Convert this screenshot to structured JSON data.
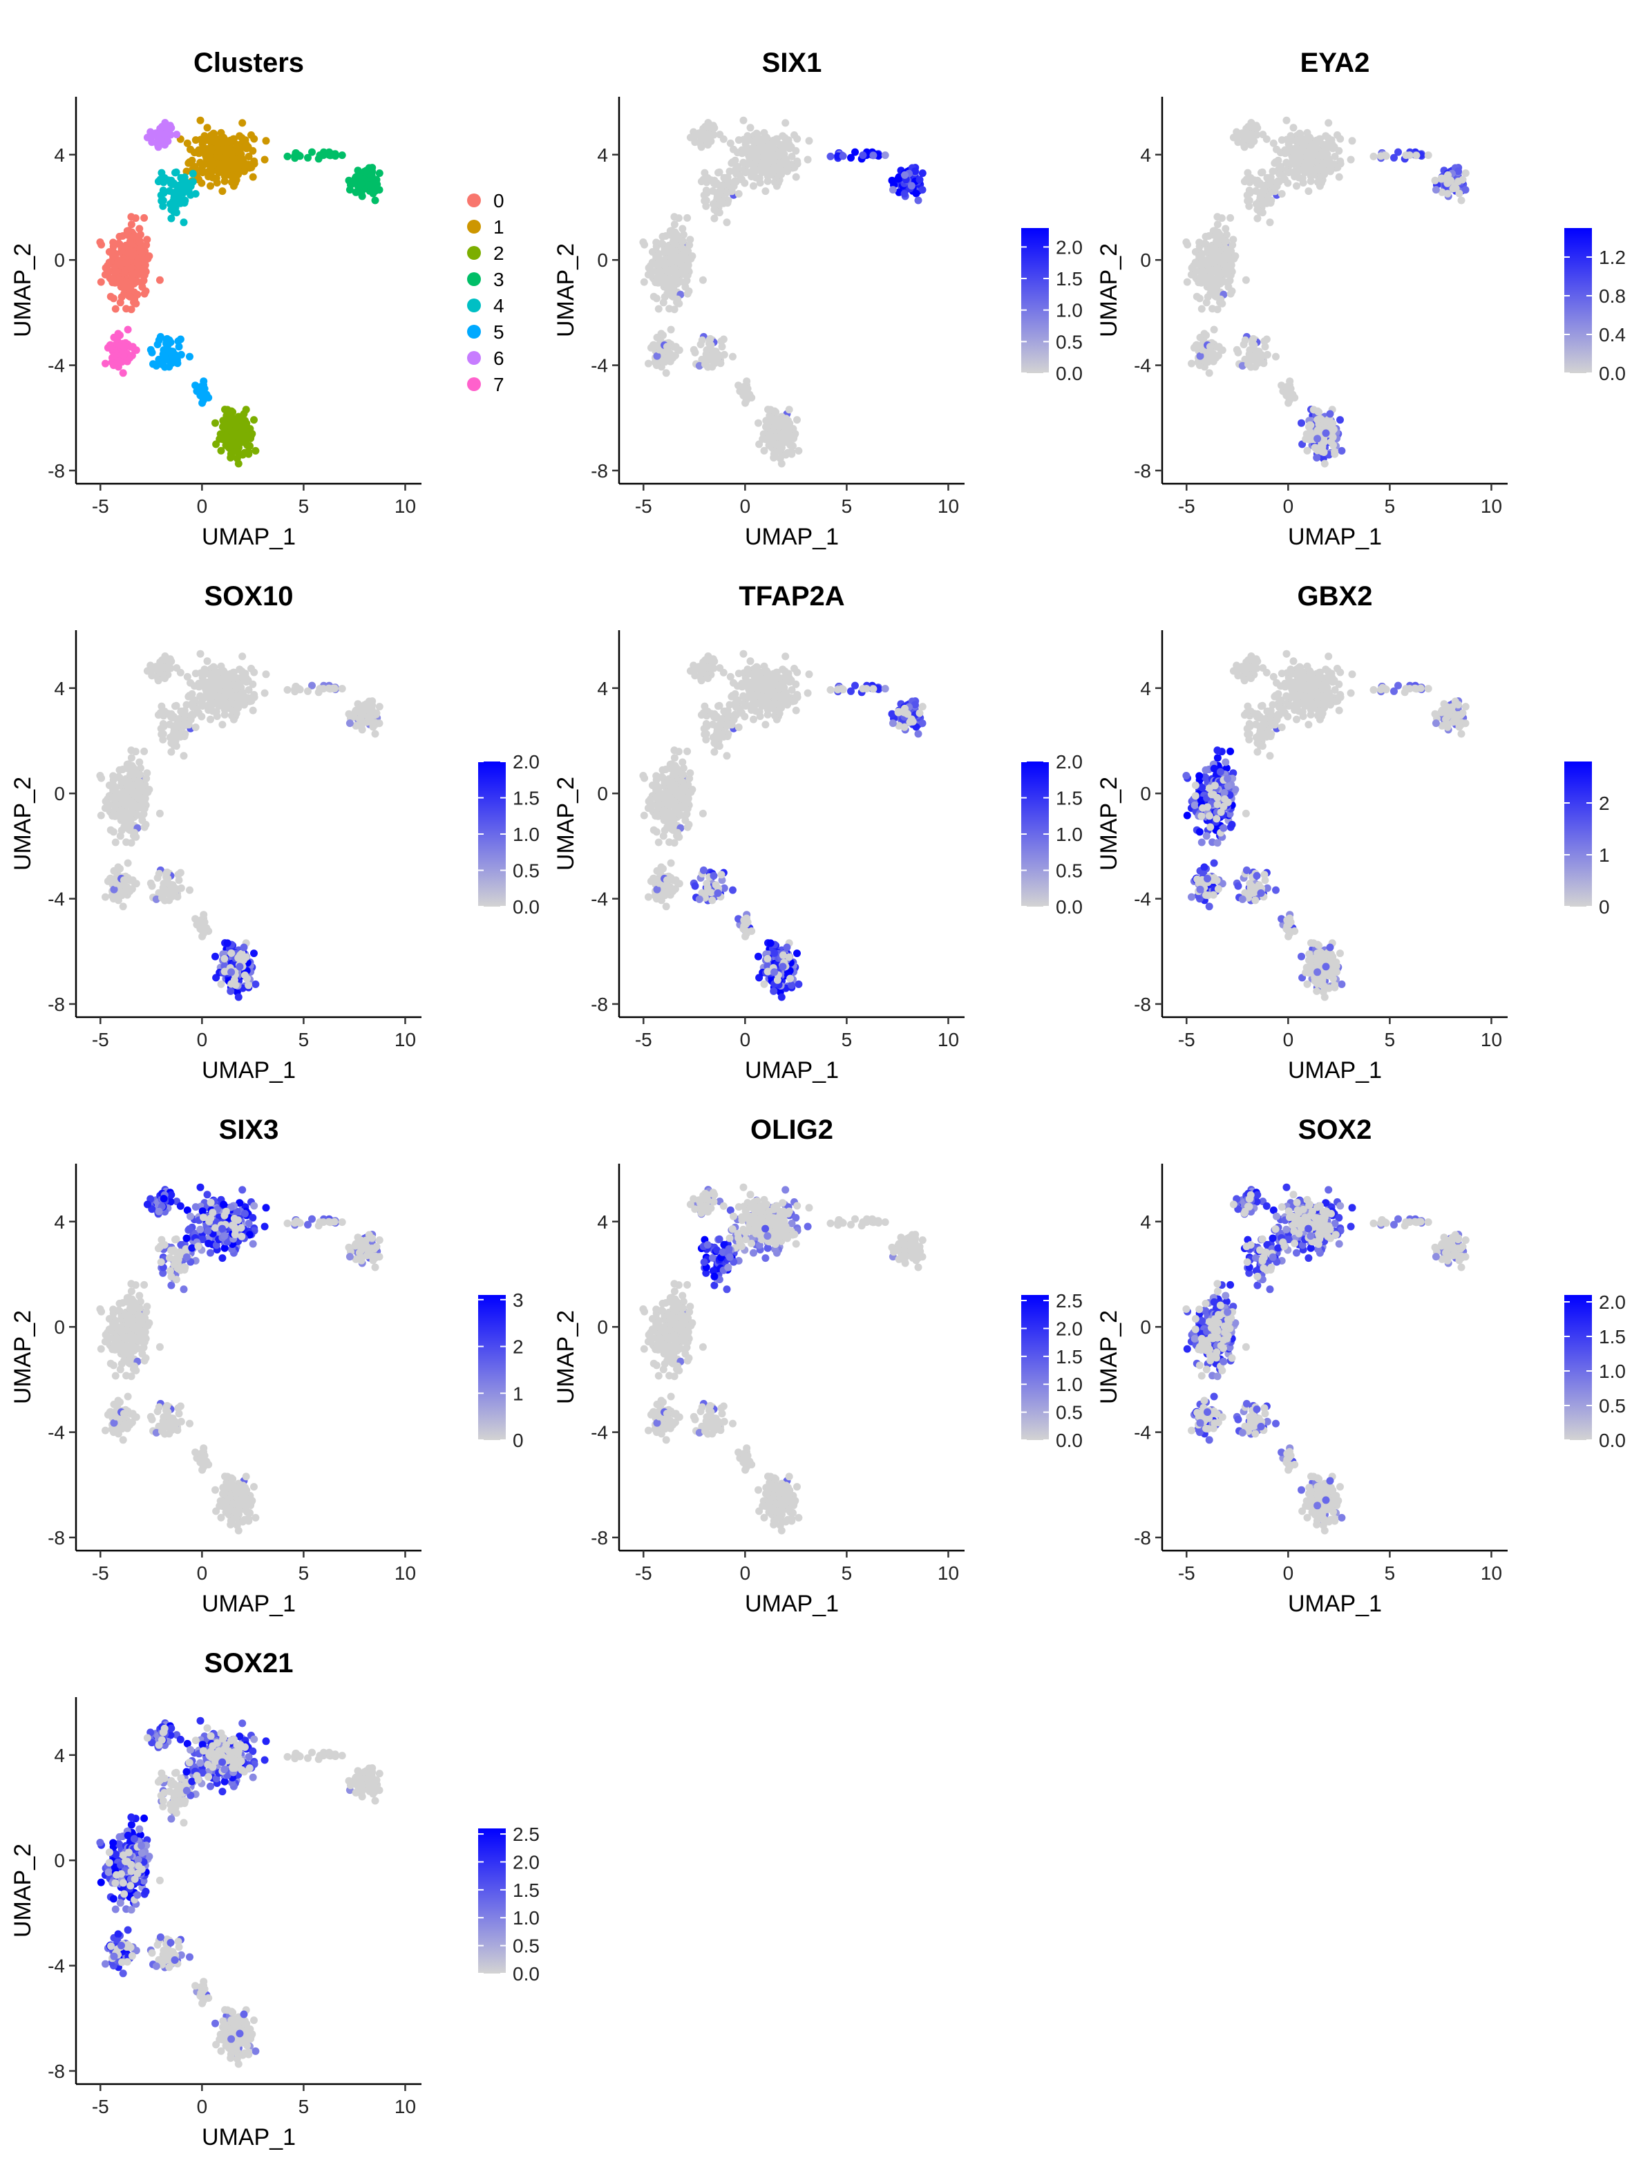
{
  "colors": {
    "low": "#d3d3d3",
    "high": "#0000ff",
    "clusters": [
      "#f8766d",
      "#cd9600",
      "#7cae00",
      "#00be67",
      "#00bfc4",
      "#00a9ff",
      "#c77cff",
      "#ff61cc"
    ]
  },
  "chart_data": [
    {
      "type": "scatter",
      "title": "Clusters",
      "xlabel": "UMAP_1",
      "ylabel": "UMAP_2",
      "xlim": [
        -6.2,
        10.8
      ],
      "ylim": [
        -8.5,
        6.2
      ],
      "xticks": [
        "-5",
        "0",
        "5",
        "10"
      ],
      "yticks": [
        "-8",
        "-4",
        "0",
        "4"
      ],
      "legend": {
        "placement": "right",
        "entries": [
          "0",
          "1",
          "2",
          "3",
          "4",
          "5",
          "6",
          "7"
        ]
      }
    },
    {
      "type": "scatter",
      "title": "SIX1",
      "xlabel": "UMAP_1",
      "ylabel": "UMAP_2",
      "xlim": [
        -6.2,
        10.8
      ],
      "ylim": [
        -8.5,
        6.2
      ],
      "xticks": [
        "-5",
        "0",
        "5",
        "10"
      ],
      "yticks": [
        "-8",
        "-4",
        "0",
        "4"
      ],
      "colorbar": {
        "max": 2.3,
        "ticks": [
          0,
          0.5,
          1,
          1.5,
          2
        ],
        "labels": [
          "0.0",
          "0.5",
          "1.0",
          "1.5",
          "2.0"
        ]
      },
      "expression": {
        "3": 0.9
      }
    },
    {
      "type": "scatter",
      "title": "EYA2",
      "xlabel": "UMAP_1",
      "ylabel": "UMAP_2",
      "xlim": [
        -6.2,
        10.8
      ],
      "ylim": [
        -8.5,
        6.2
      ],
      "xticks": [
        "-5",
        "0",
        "5",
        "10"
      ],
      "yticks": [
        "-8",
        "-4",
        "0",
        "4"
      ],
      "colorbar": {
        "max": 1.5,
        "ticks": [
          0,
          0.4,
          0.8,
          1.2
        ],
        "labels": [
          "0.0",
          "0.4",
          "0.8",
          "1.2"
        ]
      },
      "expression": {
        "2": 0.45,
        "3": 0.5
      }
    },
    {
      "type": "scatter",
      "title": "SOX10",
      "xlabel": "UMAP_1",
      "ylabel": "UMAP_2",
      "xlim": [
        -6.2,
        10.8
      ],
      "ylim": [
        -8.5,
        6.2
      ],
      "xticks": [
        "-5",
        "0",
        "5",
        "10"
      ],
      "yticks": [
        "-8",
        "-4",
        "0",
        "4"
      ],
      "colorbar": {
        "max": 2.0,
        "ticks": [
          0,
          0.5,
          1,
          1.5,
          2
        ],
        "labels": [
          "0.0",
          "0.5",
          "1.0",
          "1.5",
          "2.0"
        ]
      },
      "expression": {
        "2": 0.7,
        "3": 0.15
      }
    },
    {
      "type": "scatter",
      "title": "TFAP2A",
      "xlabel": "UMAP_1",
      "ylabel": "UMAP_2",
      "xlim": [
        -6.2,
        10.8
      ],
      "ylim": [
        -8.5,
        6.2
      ],
      "xticks": [
        "-5",
        "0",
        "5",
        "10"
      ],
      "yticks": [
        "-8",
        "-4",
        "0",
        "4"
      ],
      "colorbar": {
        "max": 2.0,
        "ticks": [
          0,
          0.5,
          1,
          1.5,
          2
        ],
        "labels": [
          "0.0",
          "0.5",
          "1.0",
          "1.5",
          "2.0"
        ]
      },
      "expression": {
        "2": 0.75,
        "3": 0.55,
        "5": 0.55
      }
    },
    {
      "type": "scatter",
      "title": "GBX2",
      "xlabel": "UMAP_1",
      "ylabel": "UMAP_2",
      "xlim": [
        -6.2,
        10.8
      ],
      "ylim": [
        -8.5,
        6.2
      ],
      "xticks": [
        "-5",
        "0",
        "5",
        "10"
      ],
      "yticks": [
        "-8",
        "-4",
        "0",
        "4"
      ],
      "colorbar": {
        "max": 2.8,
        "ticks": [
          0,
          1,
          2
        ],
        "labels": [
          "0",
          "1",
          "2"
        ]
      },
      "expression": {
        "0": 0.75,
        "7": 0.65,
        "5": 0.45,
        "3": 0.3,
        "2": 0.3
      }
    },
    {
      "type": "scatter",
      "title": "SIX3",
      "xlabel": "UMAP_1",
      "ylabel": "UMAP_2",
      "xlim": [
        -6.2,
        10.8
      ],
      "ylim": [
        -8.5,
        6.2
      ],
      "xticks": [
        "-5",
        "0",
        "5",
        "10"
      ],
      "yticks": [
        "-8",
        "-4",
        "0",
        "4"
      ],
      "colorbar": {
        "max": 3.1,
        "ticks": [
          0,
          1,
          2,
          3
        ],
        "labels": [
          "0",
          "1",
          "2",
          "3"
        ]
      },
      "expression": {
        "1": 0.75,
        "6": 0.85,
        "3": 0.3,
        "4": 0.4
      }
    },
    {
      "type": "scatter",
      "title": "OLIG2",
      "xlabel": "UMAP_1",
      "ylabel": "UMAP_2",
      "xlim": [
        -6.2,
        10.8
      ],
      "ylim": [
        -8.5,
        6.2
      ],
      "xticks": [
        "-5",
        "0",
        "5",
        "10"
      ],
      "yticks": [
        "-8",
        "-4",
        "0",
        "4"
      ],
      "colorbar": {
        "max": 2.6,
        "ticks": [
          0,
          0.5,
          1,
          1.5,
          2,
          2.5
        ],
        "labels": [
          "0.0",
          "0.5",
          "1.0",
          "1.5",
          "2.0",
          "2.5"
        ]
      },
      "expression": {
        "4": 0.8,
        "1": 0.3,
        "6": 0.35
      }
    },
    {
      "type": "scatter",
      "title": "SOX2",
      "xlabel": "UMAP_1",
      "ylabel": "UMAP_2",
      "xlim": [
        -6.2,
        10.8
      ],
      "ylim": [
        -8.5,
        6.2
      ],
      "xticks": [
        "-5",
        "0",
        "5",
        "10"
      ],
      "yticks": [
        "-8",
        "-4",
        "0",
        "4"
      ],
      "colorbar": {
        "max": 2.1,
        "ticks": [
          0,
          0.5,
          1,
          1.5,
          2
        ],
        "labels": [
          "0.0",
          "0.5",
          "1.0",
          "1.5",
          "2.0"
        ]
      },
      "expression": {
        "0": 0.55,
        "1": 0.6,
        "4": 0.6,
        "6": 0.65,
        "7": 0.55,
        "5": 0.4,
        "2": 0.25,
        "3": 0.25
      }
    },
    {
      "type": "scatter",
      "title": "SOX21",
      "xlabel": "UMAP_1",
      "ylabel": "UMAP_2",
      "xlim": [
        -6.2,
        10.8
      ],
      "ylim": [
        -8.5,
        6.2
      ],
      "xticks": [
        "-5",
        "0",
        "5",
        "10"
      ],
      "yticks": [
        "-8",
        "-4",
        "0",
        "4"
      ],
      "colorbar": {
        "max": 2.6,
        "ticks": [
          0,
          0.5,
          1,
          1.5,
          2,
          2.5
        ],
        "labels": [
          "0.0",
          "0.5",
          "1.0",
          "1.5",
          "2.0",
          "2.5"
        ]
      },
      "expression": {
        "0": 0.75,
        "7": 0.7,
        "1": 0.65,
        "6": 0.7,
        "5": 0.3,
        "2": 0.25,
        "4": 0.2
      }
    }
  ]
}
